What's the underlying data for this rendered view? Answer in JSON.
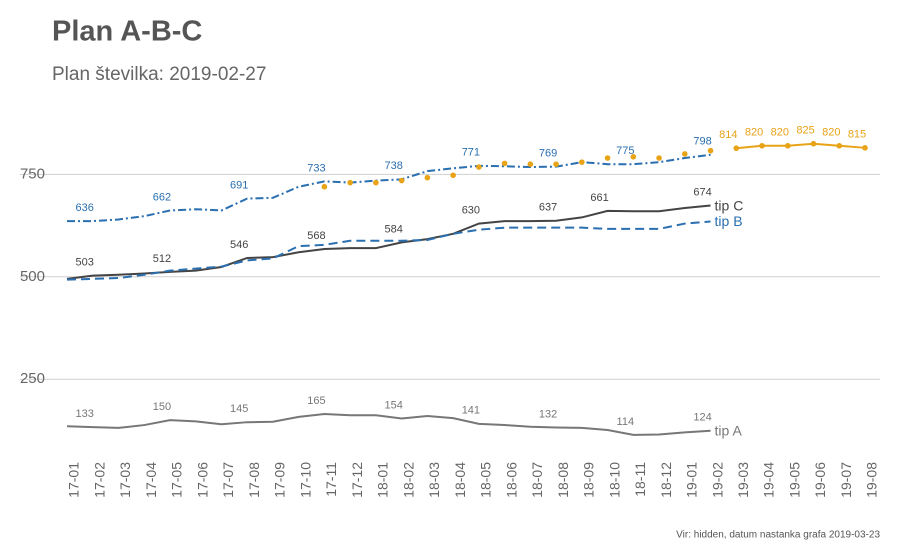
{
  "chart_data": {
    "type": "line",
    "title": "Plan A-B-C",
    "subtitle": "Plan številka:  2019-02-27",
    "caption": "Vir: hidden, datum nastanka grafa  2019-03-23",
    "categories": [
      "17-01",
      "17-02",
      "17-03",
      "17-04",
      "17-05",
      "17-06",
      "17-07",
      "17-08",
      "17-09",
      "17-10",
      "17-11",
      "17-12",
      "18-01",
      "18-02",
      "18-03",
      "18-04",
      "18-05",
      "18-06",
      "18-07",
      "18-08",
      "18-09",
      "18-10",
      "18-11",
      "18-12",
      "19-01",
      "19-02",
      "19-03",
      "19-04",
      "19-05",
      "19-06",
      "19-07",
      "19-08"
    ],
    "ylim": [
      60,
      900
    ],
    "yticks": [
      250,
      500,
      750
    ],
    "grid": true,
    "series": [
      {
        "name": "tip C",
        "color": "#444444",
        "style": "solid",
        "values": [
          495,
          503,
          505,
          508,
          512,
          515,
          524,
          546,
          548,
          560,
          568,
          570,
          570,
          584,
          592,
          605,
          630,
          636,
          636,
          637,
          645,
          661,
          660,
          660,
          668,
          674,
          null,
          null,
          null,
          null,
          null,
          null
        ],
        "value_labels": [
          null,
          "503",
          null,
          null,
          "512",
          null,
          null,
          "546",
          null,
          null,
          "568",
          null,
          null,
          "584",
          null,
          null,
          "630",
          null,
          null,
          "637",
          null,
          "661",
          null,
          null,
          null,
          "674",
          null,
          null,
          null,
          null,
          null,
          null
        ]
      },
      {
        "name": "tip B",
        "color": "#2a6fb0",
        "style": "dashed",
        "values": [
          493,
          495,
          497,
          505,
          515,
          520,
          525,
          540,
          545,
          575,
          578,
          588,
          588,
          588,
          590,
          605,
          615,
          620,
          620,
          620,
          620,
          617,
          617,
          617,
          630,
          635,
          null,
          null,
          null,
          null,
          null,
          null
        ]
      },
      {
        "color": "#2a6fb0",
        "style": "dashdot",
        "values": [
          636,
          636,
          640,
          648,
          662,
          665,
          662,
          691,
          693,
          720,
          733,
          730,
          735,
          738,
          758,
          765,
          771,
          770,
          768,
          769,
          780,
          775,
          775,
          780,
          790,
          798,
          null,
          null,
          null,
          null,
          null,
          null
        ],
        "value_labels": [
          null,
          "636",
          null,
          null,
          "662",
          null,
          null,
          "691",
          null,
          null,
          "733",
          null,
          null,
          "738",
          null,
          null,
          "771",
          null,
          null,
          "769",
          null,
          null,
          "775",
          null,
          null,
          "798",
          null,
          null,
          null,
          null,
          null,
          null
        ]
      },
      {
        "name": "tip A",
        "color": "#777777",
        "style": "solid",
        "values": [
          135,
          133,
          131,
          138,
          150,
          147,
          140,
          145,
          146,
          158,
          165,
          162,
          162,
          154,
          160,
          155,
          141,
          138,
          134,
          132,
          131,
          126,
          114,
          115,
          120,
          124,
          null,
          null,
          null,
          null,
          null,
          null
        ],
        "value_labels": [
          null,
          "133",
          null,
          null,
          "150",
          null,
          null,
          "145",
          null,
          null,
          "165",
          null,
          null,
          "154",
          null,
          null,
          "141",
          null,
          null,
          "132",
          null,
          null,
          "114",
          null,
          null,
          "124",
          null,
          null,
          null,
          null,
          null,
          null
        ]
      },
      {
        "color": "#e8a317",
        "style": "points",
        "values": [
          null,
          null,
          null,
          null,
          null,
          null,
          null,
          null,
          null,
          null,
          720,
          730,
          730,
          735,
          742,
          748,
          768,
          777,
          775,
          775,
          780,
          790,
          793,
          790,
          800,
          808,
          null,
          null,
          null,
          null,
          null,
          null
        ]
      },
      {
        "color": "#e8a317",
        "style": "solid",
        "values": [
          null,
          null,
          null,
          null,
          null,
          null,
          null,
          null,
          null,
          null,
          null,
          null,
          null,
          null,
          null,
          null,
          null,
          null,
          null,
          null,
          null,
          null,
          null,
          null,
          null,
          null,
          814,
          820,
          820,
          825,
          820,
          815
        ],
        "value_labels": [
          null,
          null,
          null,
          null,
          null,
          null,
          null,
          null,
          null,
          null,
          null,
          null,
          null,
          null,
          null,
          null,
          null,
          null,
          null,
          null,
          null,
          null,
          null,
          null,
          null,
          null,
          "814",
          "820",
          "820",
          "825",
          "820",
          "815"
        ],
        "dots": true
      }
    ]
  }
}
